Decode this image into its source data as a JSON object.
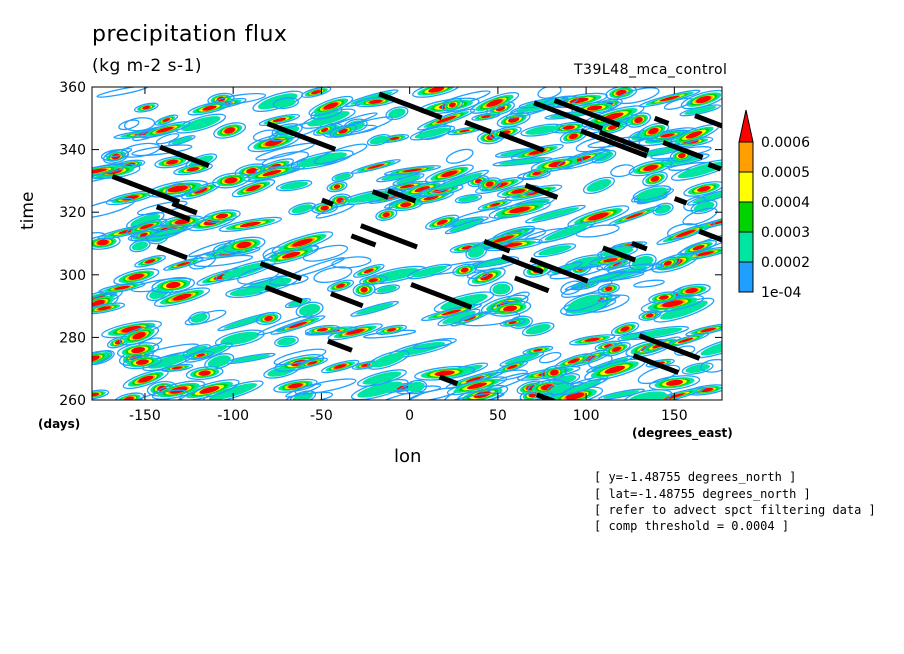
{
  "chart_data": {
    "type": "heatmap",
    "title": "precipitation flux",
    "subtitle": "(kg m-2 s-1)",
    "experiment": "T39L48_mca_control",
    "xlabel": "lon",
    "ylabel": "time",
    "xunits": "(degrees_east)",
    "yunits": "(days)",
    "xlim": [
      -180,
      177
    ],
    "ylim": [
      260,
      360
    ],
    "xticks": [
      "-150",
      "-100",
      "-50",
      "0",
      "50",
      "100",
      "150"
    ],
    "yticks": [
      "260",
      "280",
      "300",
      "320",
      "340",
      "360"
    ],
    "colorbar": {
      "levels": [
        "1e-04",
        "0.0002",
        "0.0003",
        "0.0004",
        "0.0005",
        "0.0006"
      ],
      "colors": [
        "#1f9fff",
        "#00e59f",
        "#00d400",
        "#ffff00",
        "#ff9f00",
        "#ff0000"
      ],
      "extend": "max"
    },
    "composite_color": "#000000",
    "notes": [
      "[ y=-1.48755 degrees_north ]",
      "[ lat=-1.48755 degrees_north ]",
      "[ refer to advect spct filtering data ]",
      "[ comp threshold = 0.0004 ]"
    ]
  }
}
